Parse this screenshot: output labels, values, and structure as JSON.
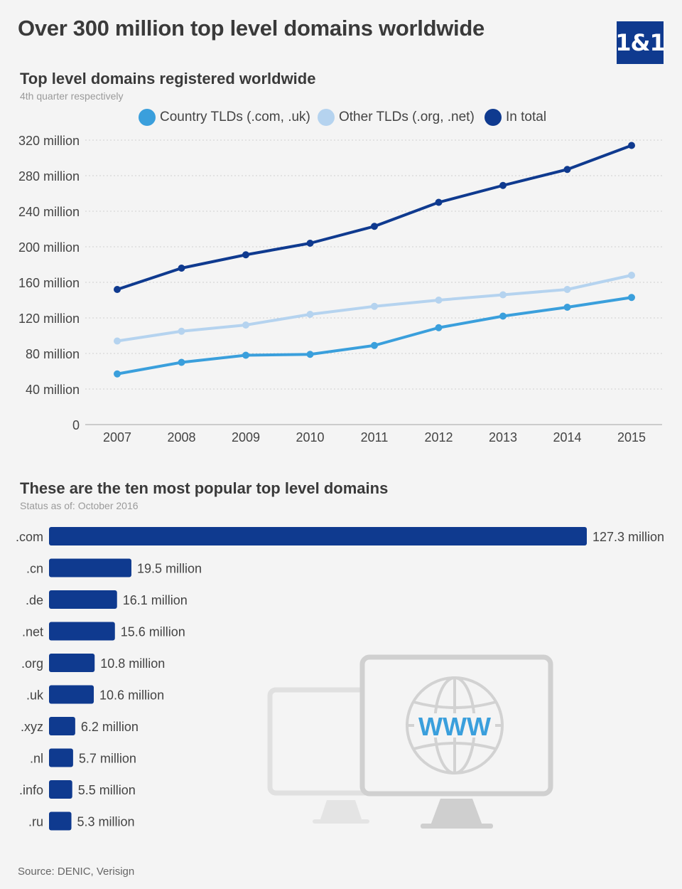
{
  "header": {
    "title": "Over 300 million top level domains worldwide",
    "logo_text": "1&1"
  },
  "line_section": {
    "title": "Top level domains registered worldwide",
    "subtitle": "4th quarter respectively"
  },
  "bar_section": {
    "title": "These are the ten most popular top level domains",
    "subtitle": "Status as of: October 2016"
  },
  "source": "Source: DENIC, Verisign",
  "illustration": {
    "icon": "www-monitor-icon",
    "text": "WWW"
  },
  "chart_data": [
    {
      "type": "line",
      "x": [
        "2007",
        "2008",
        "2009",
        "2010",
        "2011",
        "2012",
        "2013",
        "2014",
        "2015"
      ],
      "ylim": [
        0,
        320
      ],
      "yticks": [
        0,
        40,
        80,
        120,
        160,
        200,
        240,
        280,
        320
      ],
      "ytick_labels": [
        "0",
        "40 million",
        "80 million",
        "120 million",
        "160 million",
        "200 million",
        "240 million",
        "280 million",
        "320 million"
      ],
      "grid": true,
      "legend_position": "top",
      "series": [
        {
          "name": "Country TLDs (.com, .uk)",
          "color": "#3a9fdc",
          "values": [
            57,
            70,
            78,
            79,
            89,
            109,
            122,
            132,
            143
          ]
        },
        {
          "name": "Other TLDs (.org, .net)",
          "color": "#b5d3ef",
          "values": [
            94,
            105,
            112,
            124,
            133,
            140,
            146,
            152,
            168
          ]
        },
        {
          "name": "In total",
          "color": "#0f3a8f",
          "values": [
            152,
            176,
            191,
            204,
            223,
            250,
            269,
            287,
            314
          ]
        }
      ]
    },
    {
      "type": "bar",
      "orientation": "horizontal",
      "color": "#0f3a8f",
      "categories": [
        ".com",
        ".cn",
        ".de",
        ".net",
        ".org",
        ".uk",
        ".xyz",
        ".nl",
        ".info",
        ".ru"
      ],
      "values": [
        127.3,
        19.5,
        16.1,
        15.6,
        10.8,
        10.6,
        6.2,
        5.7,
        5.5,
        5.3
      ],
      "value_labels": [
        "127.3 million",
        "19.5 million",
        "16.1 million",
        "15.6 million",
        "10.8 million",
        "10.6 million",
        "6.2 million",
        "5.7 million",
        "5.5 million",
        "5.3 million"
      ]
    }
  ]
}
